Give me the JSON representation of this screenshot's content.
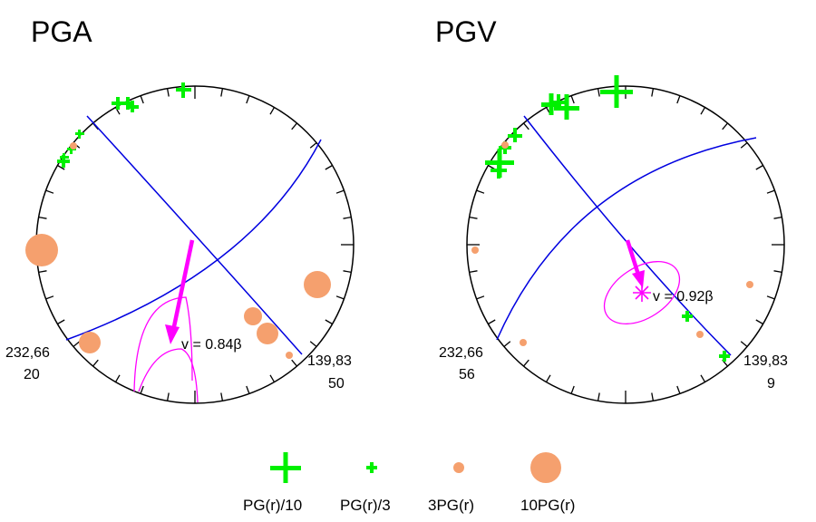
{
  "colors": {
    "plane": "#0000e0",
    "plus": "#00f000",
    "dot": "#f5a06e",
    "vector": "#ff00ff",
    "outline": "#000000"
  },
  "panels": [
    {
      "id": "pga",
      "title": "PGA",
      "left_label_line1": "232,66",
      "left_label_line2": "20",
      "right_label_line1": "139,83",
      "right_label_line2": "50",
      "velocity_label": "v = 0.84β"
    },
    {
      "id": "pgv",
      "title": "PGV",
      "left_label_line1": "232,66",
      "left_label_line2": "56",
      "right_label_line1": "139,83",
      "right_label_line2": "9",
      "velocity_label": "v = 0.92β"
    }
  ],
  "legend": {
    "items": [
      {
        "symbol": "plus-large",
        "label": "PG(r)/10"
      },
      {
        "symbol": "plus-small",
        "label": "PG(r)/3"
      },
      {
        "symbol": "dot-small",
        "label": "3PG(r)"
      },
      {
        "symbol": "dot-large",
        "label": "10PG(r)"
      }
    ]
  }
}
